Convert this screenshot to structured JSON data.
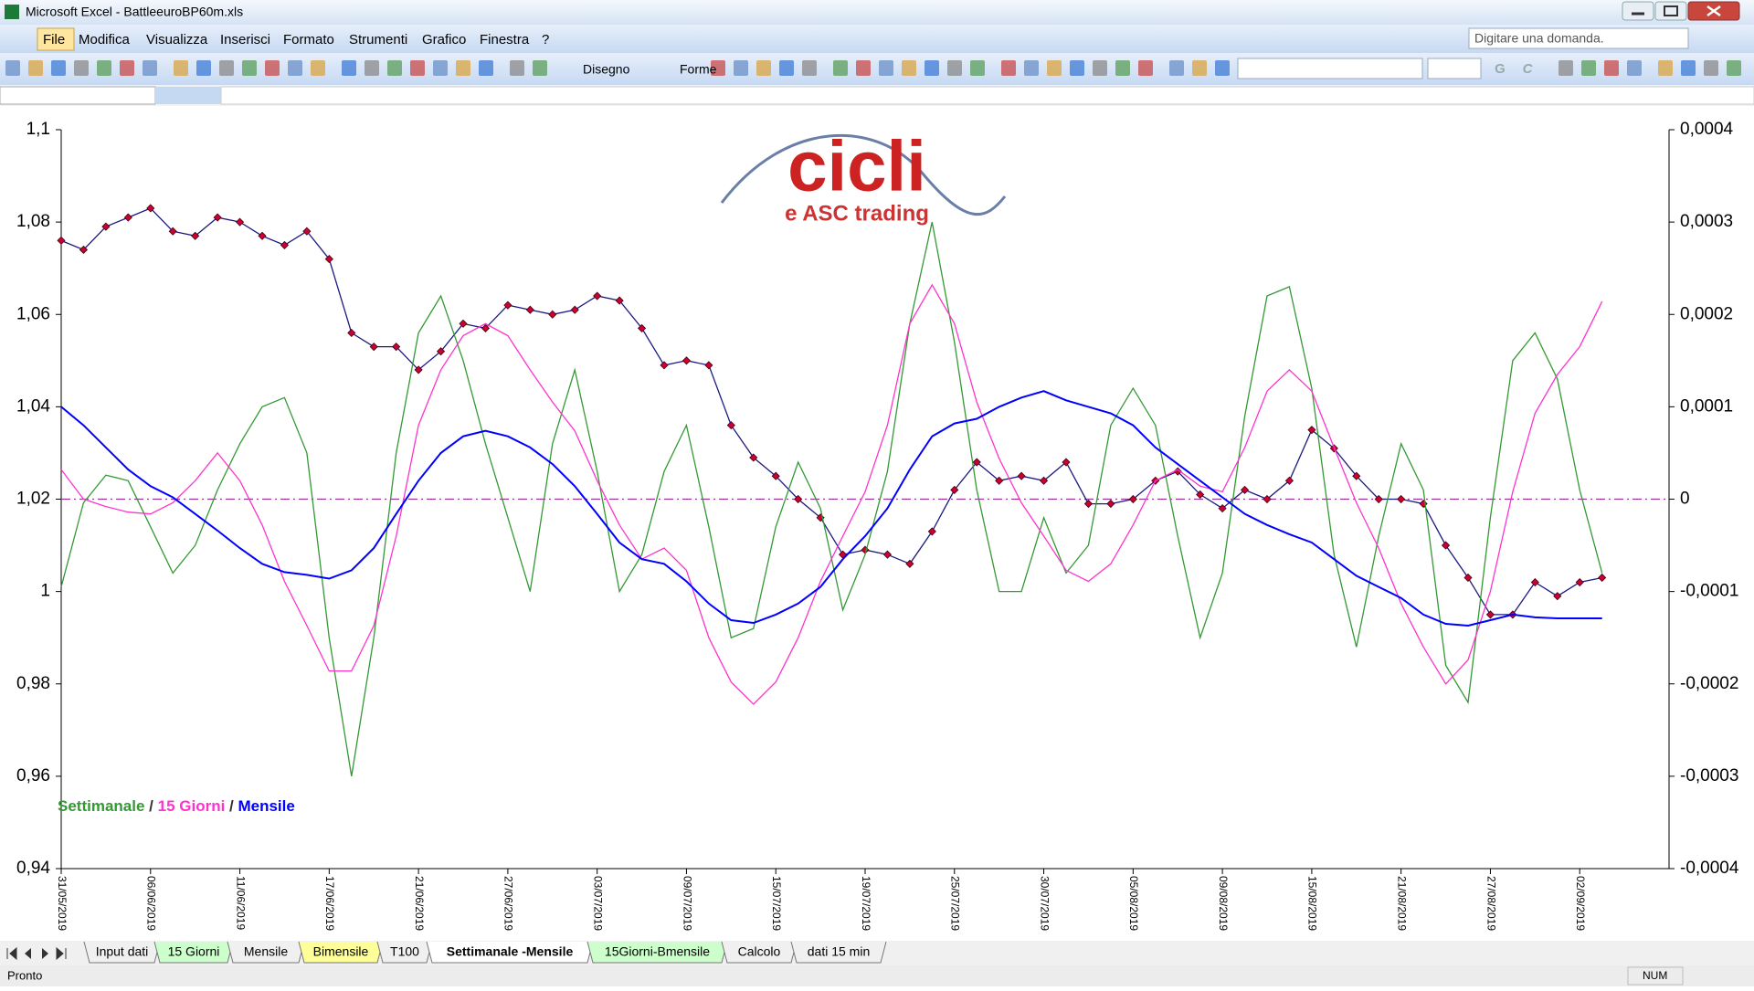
{
  "window": {
    "title": "Microsoft Excel - BattleeuroBP60m.xls"
  },
  "menu": [
    "File",
    "Modifica",
    "Visualizza",
    "Inserisci",
    "Formato",
    "Strumenti",
    "Grafico",
    "Finestra",
    "?"
  ],
  "help_box": "Digitare una domanda.",
  "toolbar": {
    "draw": "Disegno",
    "shapes": "Forme",
    "bold": "G",
    "italic": "C"
  },
  "logo": {
    "title": "cicli",
    "subtitle": "e ASC trading"
  },
  "sheet_tabs": [
    {
      "name": "Input dati"
    },
    {
      "name": "15 Giorni",
      "color": "#ccffcc"
    },
    {
      "name": "Mensile"
    },
    {
      "name": "Bimensile",
      "color": "#ffff99"
    },
    {
      "name": "T100"
    },
    {
      "name": "Settimanale -Mensile",
      "active": true
    },
    {
      "name": "15Giorni-Bmensile",
      "color": "#ccffcc"
    },
    {
      "name": "Calcolo"
    },
    {
      "name": "dati 15 min"
    }
  ],
  "status": {
    "left": "Pronto",
    "right": "NUM"
  },
  "chart_data": {
    "type": "line",
    "categories": [
      "31/05/2019",
      null,
      null,
      null,
      "06/06/2019",
      null,
      null,
      null,
      "11/06/2019",
      null,
      null,
      null,
      "17/06/2019",
      null,
      null,
      null,
      "21/06/2019",
      null,
      null,
      null,
      "27/06/2019",
      null,
      null,
      null,
      "03/07/2019",
      null,
      null,
      null,
      "09/07/2019",
      null,
      null,
      null,
      "15/07/2019",
      null,
      null,
      null,
      "19/07/2019",
      null,
      null,
      null,
      "25/07/2019",
      null,
      null,
      null,
      "30/07/2019",
      null,
      null,
      null,
      "05/08/2019",
      null,
      null,
      null,
      "09/08/2019",
      null,
      null,
      null,
      "15/08/2019",
      null,
      null,
      null,
      "21/08/2019",
      null,
      null,
      null,
      "27/08/2019",
      null,
      null,
      null,
      "02/09/2019",
      null,
      null,
      null,
      null
    ],
    "series": [
      {
        "color": "#1a1a80",
        "marker_color": "#cc0033",
        "markers": true,
        "values": [
          1.076,
          1.074,
          1.079,
          1.081,
          1.083,
          1.078,
          1.077,
          1.081,
          1.08,
          1.077,
          1.075,
          1.078,
          1.072,
          1.056,
          1.053,
          1.053,
          1.048,
          1.052,
          1.058,
          1.057,
          1.062,
          1.061,
          1.06,
          1.061,
          1.064,
          1.063,
          1.057,
          1.049,
          1.05,
          1.049,
          1.036,
          1.029,
          1.025,
          1.02,
          1.016,
          1.008,
          1.009,
          1.008,
          1.006,
          1.013,
          1.022,
          1.028,
          1.024,
          1.025,
          1.024,
          1.028,
          1.019,
          1.019,
          1.02,
          1.024,
          1.026,
          1.021,
          1.018,
          1.022,
          1.02,
          1.024,
          1.035,
          1.031,
          1.025,
          1.02,
          1.02,
          1.019,
          1.01,
          1.003,
          0.995,
          0.995,
          1.002,
          0.999,
          1.002,
          1.003,
          null,
          null,
          null
        ]
      },
      {
        "name": "Settimanale",
        "color": "#339933",
        "axis": "y2",
        "values": [
          -9.5e-05,
          -4e-06,
          2.6e-05,
          2e-05,
          -3e-05,
          -8e-05,
          -5e-05,
          1e-05,
          6e-05,
          0.0001,
          0.00011,
          5e-05,
          -0.00015,
          -0.0003,
          -0.00015,
          5e-05,
          0.00018,
          0.00022,
          0.00015,
          6e-05,
          -2e-05,
          -0.0001,
          6e-05,
          0.00014,
          3e-05,
          -0.0001,
          -6e-05,
          3e-05,
          8e-05,
          -3e-05,
          -0.00015,
          -0.00014,
          -3e-05,
          4e-05,
          -1e-05,
          -0.00012,
          -6e-05,
          3e-05,
          0.00019,
          0.0003,
          0.00017,
          1e-05,
          -0.0001,
          -0.0001,
          -2e-05,
          -8e-05,
          -5e-05,
          8e-05,
          0.00012,
          8e-05,
          -4e-05,
          -0.00015,
          -8e-05,
          9e-05,
          0.00022,
          0.00023,
          0.00012,
          -6e-05,
          -0.00016,
          -4e-05,
          6e-05,
          1e-05,
          -0.00018,
          -0.00022,
          -2e-05,
          0.00015,
          0.00018,
          0.00013,
          1e-05,
          -8e-05,
          null,
          null,
          null
        ]
      },
      {
        "name": "15 Giorni",
        "color": "#ff33cc",
        "axis": "y2",
        "values": [
          3.2e-05,
          0,
          -8e-06,
          -1.4e-05,
          -1.6e-05,
          -4e-06,
          2e-05,
          5e-05,
          2e-05,
          -2.8e-05,
          -8.9e-05,
          -0.000137,
          -0.000186,
          -0.000186,
          -0.000137,
          -4e-05,
          8e-05,
          0.00014,
          0.000177,
          0.00019,
          0.000177,
          0.00014,
          0.000105,
          7.4e-05,
          2e-05,
          -2.8e-05,
          -6.5e-05,
          -5.3e-05,
          -7.7e-05,
          -0.00015,
          -0.000198,
          -0.000222,
          -0.000198,
          -0.00015,
          -8.9e-05,
          -4e-05,
          8e-06,
          8e-05,
          0.00019,
          0.000232,
          0.00019,
          0.000105,
          4.4e-05,
          -4e-06,
          -4e-05,
          -7.7e-05,
          -8.9e-05,
          -7e-05,
          -2.8e-05,
          2e-05,
          3.2e-05,
          1.4e-05,
          8e-06,
          5.6e-05,
          0.000117,
          0.00014,
          0.000117,
          5.6e-05,
          -4e-06,
          -5.3e-05,
          -0.000113,
          -0.00016,
          -0.0002,
          -0.000174,
          -0.0001,
          8e-06,
          9.3e-05,
          0.000135,
          0.000165,
          0.000214,
          null,
          null,
          null
        ]
      },
      {
        "name": "Mensile",
        "color": "#0000ff",
        "axis": "y2",
        "width": 2,
        "values": [
          0.0001,
          8e-05,
          5.6e-05,
          3.2e-05,
          1.4e-05,
          2e-06,
          -1.6e-05,
          -3.4e-05,
          -5.3e-05,
          -7e-05,
          -7.9e-05,
          -8.2e-05,
          -8.6e-05,
          -7.7e-05,
          -5.3e-05,
          -1.6e-05,
          2e-05,
          5e-05,
          6.8e-05,
          7.4e-05,
          6.8e-05,
          5.6e-05,
          3.8e-05,
          1.4e-05,
          -1.6e-05,
          -4.7e-05,
          -6.5e-05,
          -7e-05,
          -8.9e-05,
          -0.000113,
          -0.000131,
          -0.000134,
          -0.000125,
          -0.000113,
          -9.5e-05,
          -6.5e-05,
          -4e-05,
          -1e-05,
          3.2e-05,
          6.8e-05,
          8.2e-05,
          8.7e-05,
          0.0001,
          0.00011,
          0.000117,
          0.000107,
          0.0001,
          9.3e-05,
          8e-05,
          5.6e-05,
          3.8e-05,
          2e-05,
          2e-06,
          -1.6e-05,
          -2.8e-05,
          -3.8e-05,
          -4.7e-05,
          -6.5e-05,
          -8.3e-05,
          -9.5e-05,
          -0.000107,
          -0.000125,
          -0.000135,
          -0.000137,
          -0.000131,
          -0.000125,
          -0.000128,
          -0.000129,
          -0.000129,
          -0.000129,
          null,
          null,
          null
        ]
      }
    ],
    "legend_separator": " / ",
    "ylim": [
      0.94,
      1.1
    ],
    "yticks": [
      {
        "value": 0.94,
        "label": "0,94"
      },
      {
        "value": 0.96,
        "label": "0,96"
      },
      {
        "value": 0.98,
        "label": "0,98"
      },
      1,
      {
        "value": 1.02,
        "label": "1,02"
      },
      {
        "value": 1.04,
        "label": "1,04"
      },
      {
        "value": 1.06,
        "label": "1,06"
      },
      {
        "value": 1.08,
        "label": "1,08"
      },
      {
        "value": 1.1,
        "label": "1,1"
      }
    ],
    "y2lim": [
      -0.0004,
      0.0004
    ],
    "y2ticks": [
      {
        "value": -0.0004,
        "label": "-0,0004"
      },
      {
        "value": -0.0003,
        "label": "-0,0003"
      },
      {
        "value": -0.0002,
        "label": "-0,0002"
      },
      {
        "value": -0.0001,
        "label": "-0,0001"
      },
      0,
      {
        "value": 0.0001,
        "label": "0,0001"
      },
      {
        "value": 0.0002,
        "label": "0,0002"
      },
      {
        "value": 0.0003,
        "label": "0,0003"
      },
      {
        "value": 0.0004,
        "label": "0,0004"
      }
    ],
    "reference_line": {
      "axis": "y2",
      "value": 0,
      "color": "#993399"
    },
    "grid": false
  }
}
